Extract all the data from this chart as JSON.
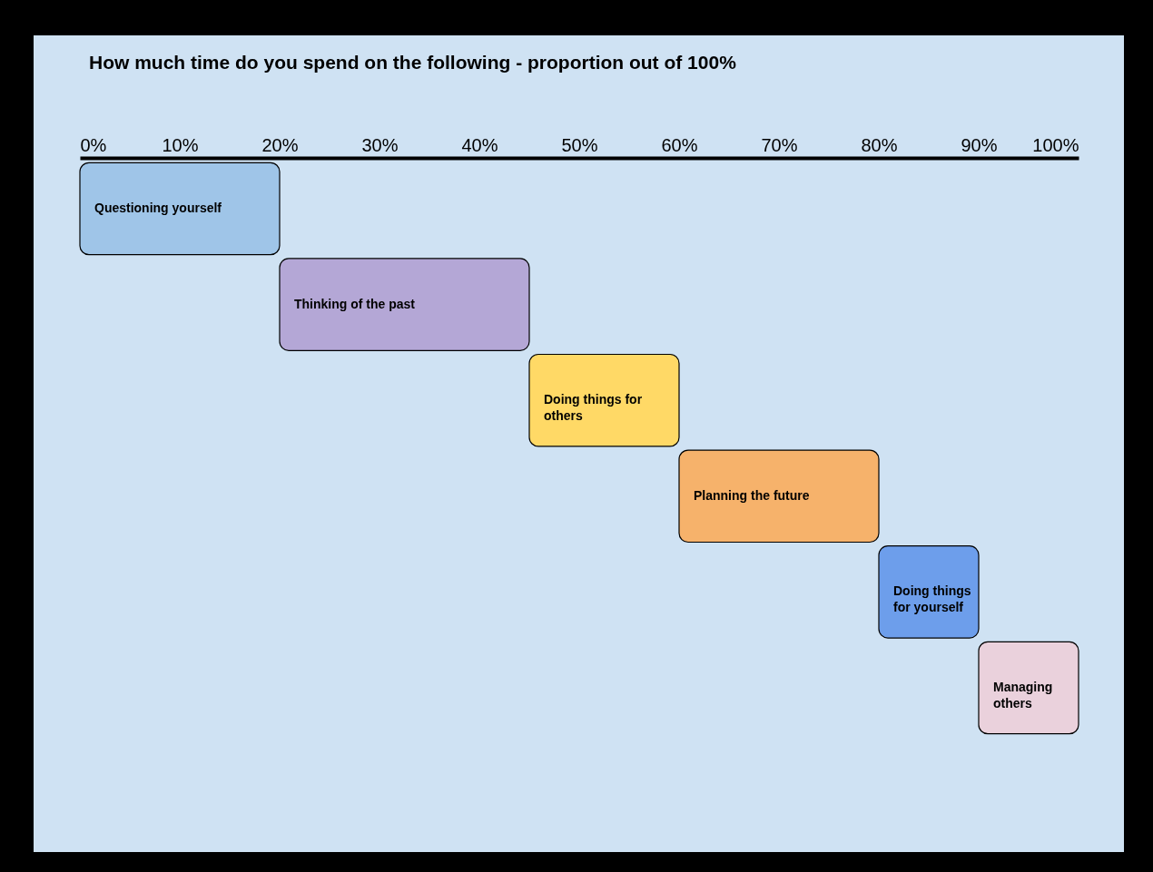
{
  "chart_data": {
    "type": "bar",
    "orientation": "horizontal",
    "title": "How much time do you spend on the following - proportion out of 100%",
    "categories": [
      "Questioning yourself",
      "Thinking of the past",
      "Doing things for others",
      "Planning the future",
      "Doing things for yourself",
      "Managing others"
    ],
    "base": [
      0,
      20,
      45,
      60,
      80,
      90
    ],
    "values": [
      20,
      25,
      15,
      20,
      10,
      10
    ],
    "colors": [
      "#9fc5e8",
      "#b4a7d6",
      "#ffd966",
      "#f6b26b",
      "#6d9eeb",
      "#ead1dc"
    ],
    "xlim": [
      0,
      100
    ],
    "xticks": [
      {
        "value": 0,
        "label": "0%"
      },
      {
        "value": 10,
        "label": "10%"
      },
      {
        "value": 20,
        "label": "20%"
      },
      {
        "value": 30,
        "label": "30%"
      },
      {
        "value": 40,
        "label": "40%"
      },
      {
        "value": 50,
        "label": "50%"
      },
      {
        "value": 60,
        "label": "60%"
      },
      {
        "value": 70,
        "label": "70%"
      },
      {
        "value": 80,
        "label": "80%"
      },
      {
        "value": 90,
        "label": "90%"
      },
      {
        "value": 100,
        "label": "100%"
      }
    ],
    "tick_labels": "x",
    "grid": false,
    "legend": false
  }
}
